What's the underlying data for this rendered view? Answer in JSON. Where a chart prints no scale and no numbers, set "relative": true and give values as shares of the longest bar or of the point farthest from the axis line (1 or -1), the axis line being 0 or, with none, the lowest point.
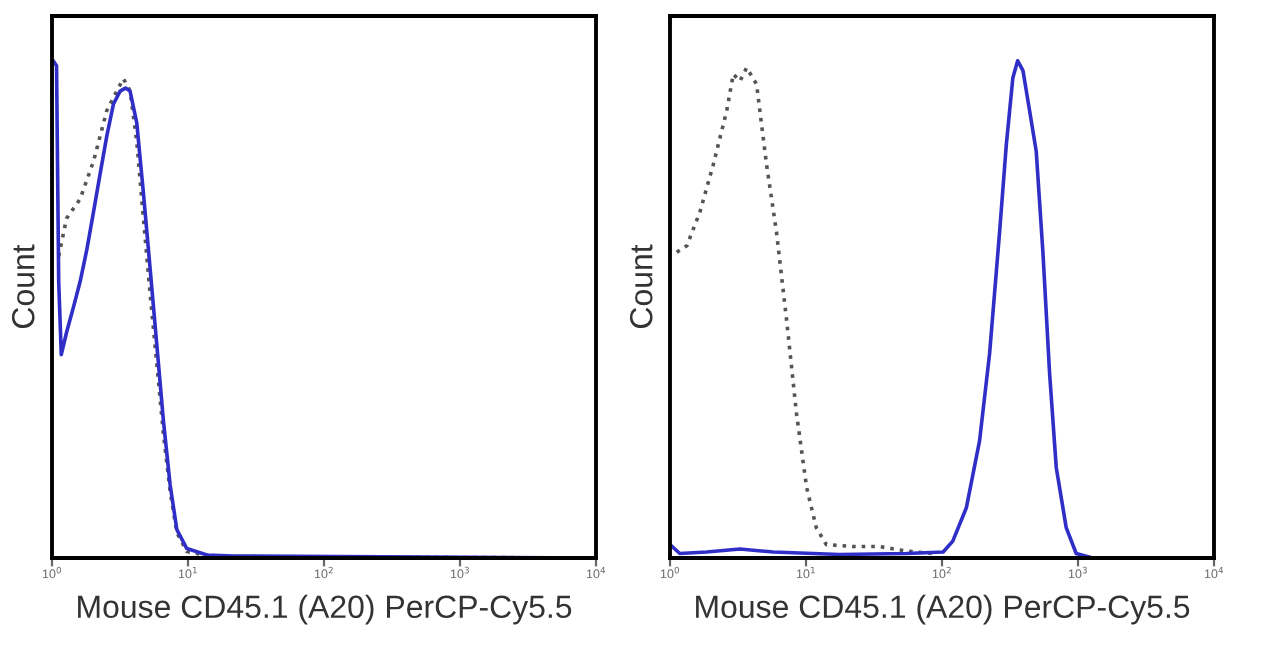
{
  "chart_data": [
    {
      "type": "line",
      "relative": true,
      "log": "x",
      "xlabel": "Mouse CD45.1 (A20) PerCP-Cy5.5",
      "ylabel": "Count",
      "xlim": [
        1,
        10000
      ],
      "xticks": [
        {
          "value": 1,
          "label": "10$^{0}$"
        },
        {
          "value": 10,
          "label": "10$^{1}$"
        },
        {
          "value": 100,
          "label": "10$^{2}$"
        },
        {
          "value": 1000,
          "label": "10$^{3}$"
        },
        {
          "value": 10000,
          "label": "10$^{4}$"
        }
      ],
      "tick_labels": "x",
      "grid": false,
      "legend": false,
      "series": [
        {
          "color": "#555555",
          "line_style": "dotted",
          "x": [
            1.12,
            1.28,
            1.61,
            2.02,
            2.53,
            2.99,
            3.35,
            3.75,
            4.2,
            4.7,
            5.27,
            5.9,
            6.6,
            7.39,
            8.28,
            9.8,
            15.4,
            10000
          ],
          "values": [
            0.607,
            0.683,
            0.722,
            0.798,
            0.9,
            0.939,
            0.964,
            0.939,
            0.837,
            0.683,
            0.53,
            0.39,
            0.249,
            0.134,
            0.051,
            0.013,
            0.003,
            0
          ]
        },
        {
          "color": "#2f2fc8",
          "line_style": "solid",
          "x": [
            1.02,
            1.08,
            1.12,
            1.17,
            1.28,
            1.44,
            1.61,
            1.8,
            2.02,
            2.26,
            2.53,
            2.83,
            3.17,
            3.47,
            3.75,
            4.2,
            4.7,
            5.27,
            5.9,
            6.6,
            7.39,
            8.28,
            9.8,
            13.8,
            21.6,
            10000
          ],
          "values": [
            1.0,
            0.99,
            0.556,
            0.409,
            0.454,
            0.505,
            0.556,
            0.619,
            0.696,
            0.773,
            0.849,
            0.913,
            0.939,
            0.945,
            0.939,
            0.875,
            0.734,
            0.581,
            0.428,
            0.275,
            0.147,
            0.057,
            0.019,
            0.006,
            0.004,
            0
          ]
        }
      ]
    },
    {
      "type": "line",
      "relative": true,
      "log": "x",
      "xlabel": "Mouse CD45.1 (A20) PerCP-Cy5.5",
      "ylabel": "Count",
      "xlim": [
        1,
        10000
      ],
      "xticks": [
        {
          "value": 1,
          "label": "10$^{0}$"
        },
        {
          "value": 10,
          "label": "10$^{1}$"
        },
        {
          "value": 100,
          "label": "10$^{2}$"
        },
        {
          "value": 1000,
          "label": "10$^{3}$"
        },
        {
          "value": 10000,
          "label": "10$^{4}$"
        }
      ],
      "tick_labels": "x",
      "grid": false,
      "legend": false,
      "series": [
        {
          "color": "#555555",
          "line_style": "dotted",
          "x": [
            1.12,
            1.33,
            1.66,
            2.08,
            2.61,
            2.92,
            3.27,
            3.66,
            4.33,
            5.13,
            6.07,
            7.19,
            8.51,
            10.1,
            11.9,
            14.1,
            22.2,
            34.8,
            54.7,
            85.9
          ],
          "values": [
            0.615,
            0.628,
            0.696,
            0.791,
            0.899,
            0.973,
            0.959,
            0.986,
            0.953,
            0.791,
            0.655,
            0.48,
            0.291,
            0.142,
            0.061,
            0.027,
            0.023,
            0.023,
            0.014,
            0.009
          ]
        },
        {
          "color": "#2f2fc8",
          "line_style": "solid",
          "x": [
            1,
            1.18,
            1.86,
            3.27,
            5.74,
            17.7,
            54.7,
            102,
            120,
            151,
            189,
            224,
            265,
            297,
            332,
            360,
            394,
            441,
            493,
            552,
            618,
            692,
            819,
            970,
            1285,
            10000
          ],
          "values": [
            0.027,
            0.009,
            0.012,
            0.018,
            0.012,
            0.007,
            0.009,
            0.012,
            0.034,
            0.101,
            0.236,
            0.412,
            0.655,
            0.831,
            0.966,
            1,
            0.98,
            0.899,
            0.818,
            0.615,
            0.372,
            0.182,
            0.061,
            0.009,
            0,
            0
          ]
        }
      ]
    }
  ]
}
